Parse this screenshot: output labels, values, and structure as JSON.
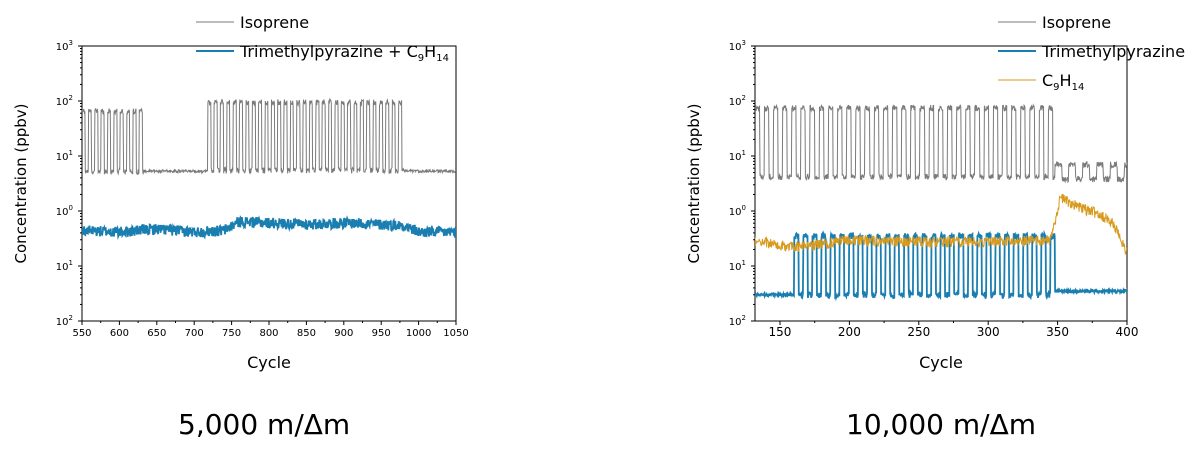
{
  "chart_data": [
    {
      "type": "line",
      "caption": "5,000 m/Δm",
      "xlabel": "Cycle",
      "ylabel": "Concentration (ppbv)",
      "xlim": [
        550,
        1050
      ],
      "xticks": [
        550,
        600,
        650,
        700,
        750,
        800,
        850,
        900,
        950,
        1000,
        1050
      ],
      "ylim_log10": [
        -2,
        3
      ],
      "yscale": "log",
      "ytick_labels": [
        {
          "exp": -2,
          "base": "10",
          "sup": "2"
        },
        {
          "exp": -1,
          "base": "10",
          "sup": "1"
        },
        {
          "exp": 0,
          "base": "10",
          "sup": "0"
        },
        {
          "exp": 1,
          "base": "10",
          "sup": "1"
        },
        {
          "exp": 2,
          "base": "10",
          "sup": "2"
        },
        {
          "exp": 3,
          "base": "10",
          "sup": "3"
        }
      ],
      "legend_position": "top-right",
      "series": [
        {
          "name": "Isoprene",
          "color": "#7a7a7a",
          "pattern": "on-off cycling",
          "segments": [
            {
              "x_start": 550,
              "x_end": 632,
              "period": 8.5,
              "high": 65,
              "low": 5.3
            },
            {
              "x_start": 632,
              "x_end": 718,
              "constant": 5.3
            },
            {
              "x_start": 718,
              "x_end": 980,
              "period": 8.5,
              "high": 95,
              "low": 5.5
            },
            {
              "x_start": 980,
              "x_end": 1050,
              "constant": 5.3
            }
          ]
        },
        {
          "name": "Trimethylpyrazine + C9H14",
          "legend_parts": [
            {
              "text": "Trimethylpyrazine + C"
            },
            {
              "text": "9",
              "sub": true
            },
            {
              "text": "H"
            },
            {
              "text": "14",
              "sub": true
            }
          ],
          "color": "#1a7fb0",
          "pattern": "noisy",
          "points": [
            [
              550,
              0.45
            ],
            [
              600,
              0.42
            ],
            [
              650,
              0.48
            ],
            [
              700,
              0.42
            ],
            [
              740,
              0.45
            ],
            [
              760,
              0.65
            ],
            [
              800,
              0.62
            ],
            [
              850,
              0.58
            ],
            [
              900,
              0.62
            ],
            [
              950,
              0.58
            ],
            [
              980,
              0.55
            ],
            [
              1000,
              0.42
            ],
            [
              1050,
              0.42
            ]
          ]
        }
      ]
    },
    {
      "type": "line",
      "caption": "10,000 m/Δm",
      "xlabel": "Cycle",
      "ylabel": "Concentration (ppbv)",
      "xlim": [
        132,
        400
      ],
      "xticks": [
        150,
        200,
        250,
        300,
        350,
        400
      ],
      "ylim_log10": [
        -2,
        3
      ],
      "yscale": "log",
      "ytick_labels": [
        {
          "exp": -2,
          "base": "10",
          "sup": "2"
        },
        {
          "exp": -1,
          "base": "10",
          "sup": "1"
        },
        {
          "exp": 0,
          "base": "10",
          "sup": "0"
        },
        {
          "exp": 1,
          "base": "10",
          "sup": "1"
        },
        {
          "exp": 2,
          "base": "10",
          "sup": "2"
        },
        {
          "exp": 3,
          "base": "10",
          "sup": "3"
        }
      ],
      "legend_position": "top-right",
      "series": [
        {
          "name": "Isoprene",
          "color": "#7a7a7a",
          "pattern": "on-off cycling",
          "segments": [
            {
              "x_start": 132,
              "x_end": 348,
              "period": 6.6,
              "high": 75,
              "low": 4.2
            },
            {
              "x_start": 348,
              "x_end": 400,
              "period": 10,
              "high": 7,
              "low": 3.8
            }
          ]
        },
        {
          "name": "Trimethylpyrazine",
          "color": "#1a7fb0",
          "pattern": "anti-phase cycling",
          "segments": [
            {
              "x_start": 132,
              "x_end": 160,
              "constant": 0.03
            },
            {
              "x_start": 160,
              "x_end": 348,
              "period": 6.6,
              "high": 0.35,
              "low": 0.03
            },
            {
              "x_start": 348,
              "x_end": 400,
              "constant": 0.035
            }
          ]
        },
        {
          "name": "C9H14",
          "legend_parts": [
            {
              "text": "C"
            },
            {
              "text": "9",
              "sub": true
            },
            {
              "text": "H"
            },
            {
              "text": "14",
              "sub": true
            }
          ],
          "color": "#d89a1c",
          "pattern": "noisy with peaks",
          "points": [
            [
              132,
              0.3
            ],
            [
              160,
              0.22
            ],
            [
              200,
              0.3
            ],
            [
              250,
              0.28
            ],
            [
              300,
              0.28
            ],
            [
              345,
              0.3
            ],
            [
              352,
              1.8
            ],
            [
              365,
              1.2
            ],
            [
              380,
              0.9
            ],
            [
              390,
              0.6
            ],
            [
              400,
              0.18
            ]
          ]
        }
      ]
    }
  ]
}
